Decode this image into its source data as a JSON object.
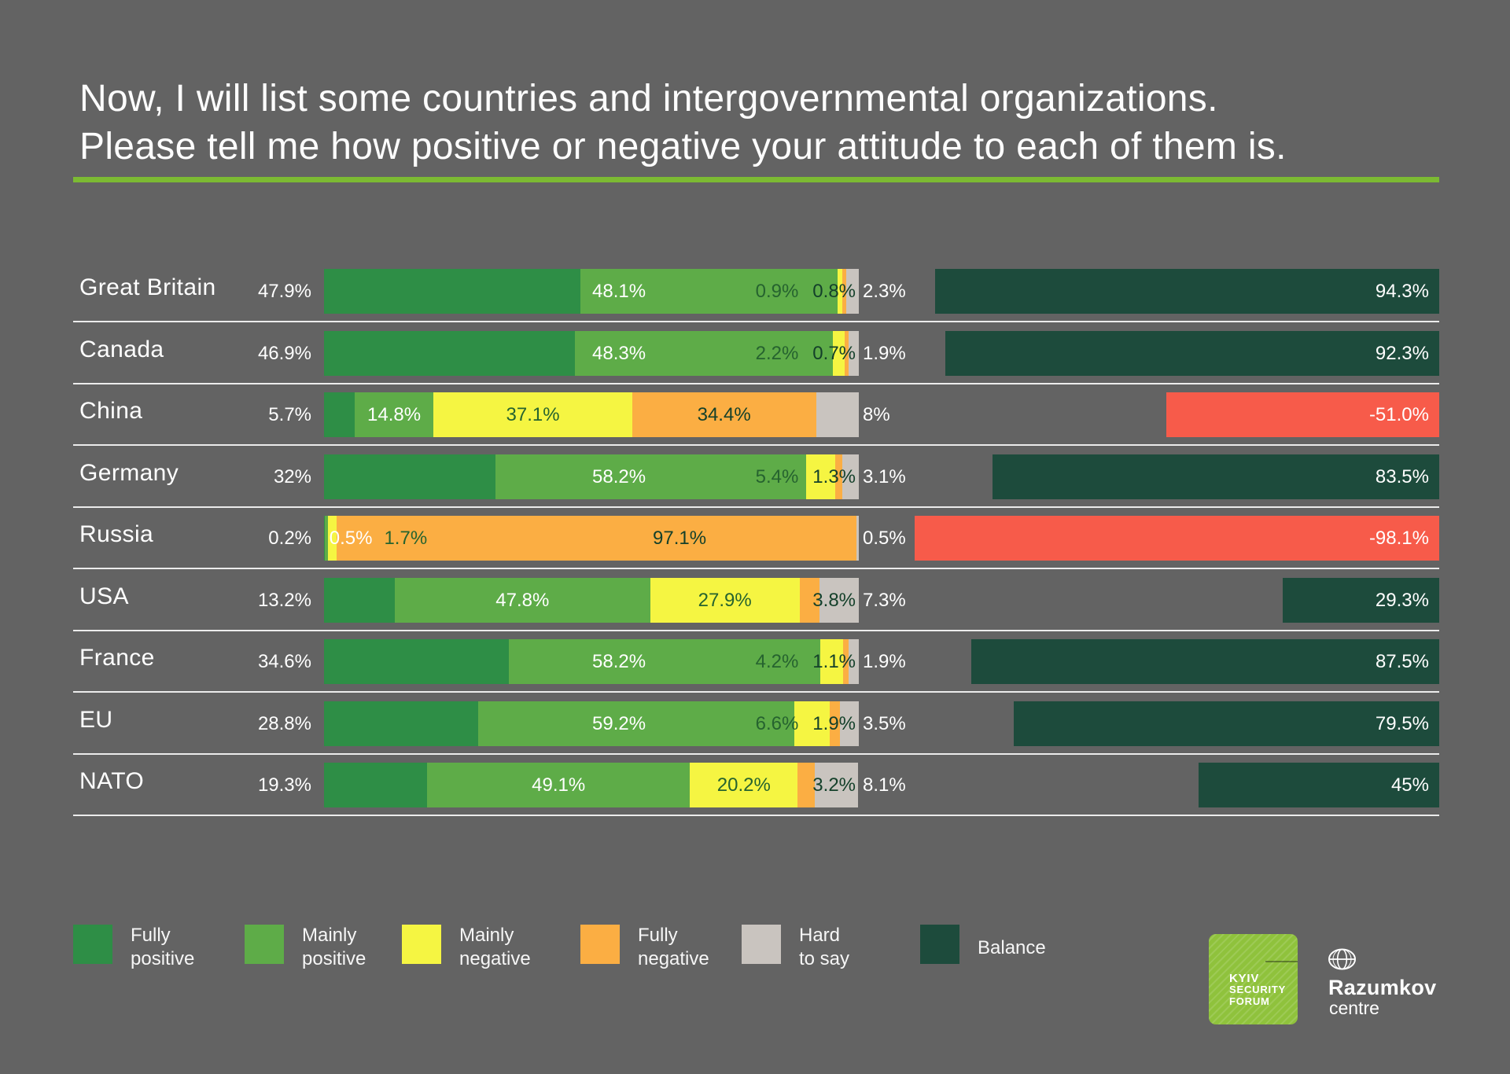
{
  "title": {
    "line1": "Now, I will list some countries and intergovernmental organizations.",
    "line2": "Please tell me how positive or negative your attitude to each of them is."
  },
  "accent": {
    "background": "#636363",
    "underline": "#7cba33",
    "separator": "#ececec"
  },
  "chart_data": {
    "type": "bar",
    "stacked": true,
    "unit": "percent",
    "xlim": [
      0,
      100
    ],
    "categories": [
      "Great Britain",
      "Canada",
      "China",
      "Germany",
      "Russia",
      "USA",
      "France",
      "EU",
      "NATO"
    ],
    "series": [
      {
        "name": "Fully positive",
        "color": "#2e8e46",
        "values": [
          47.9,
          46.9,
          5.7,
          32,
          0.2,
          13.2,
          34.6,
          28.8,
          19.3
        ]
      },
      {
        "name": "Mainly positive",
        "color": "#5eac48",
        "values": [
          48.1,
          48.3,
          14.8,
          58.2,
          0.5,
          47.8,
          58.2,
          59.2,
          49.1
        ]
      },
      {
        "name": "Mainly negative",
        "color": "#f5f542",
        "values": [
          0.9,
          2.2,
          37.1,
          5.4,
          1.7,
          27.9,
          4.2,
          6.6,
          20.2
        ]
      },
      {
        "name": "Fully negative",
        "color": "#fbae43",
        "values": [
          0.8,
          0.7,
          34.4,
          1.3,
          97.1,
          3.8,
          1.1,
          1.9,
          3.2
        ]
      },
      {
        "name": "Hard to say",
        "color": "#c9c4bf",
        "values": [
          2.3,
          1.9,
          8,
          3.1,
          0.5,
          7.3,
          1.9,
          3.5,
          8.1
        ]
      }
    ],
    "balance": {
      "name": "Balance",
      "positive_color": "#1d4b3c",
      "negative_color": "#f75b4a",
      "values": [
        94.3,
        92.3,
        -51.0,
        83.5,
        -98.1,
        29.3,
        87.5,
        79.5,
        45
      ]
    },
    "value_labels": {
      "fully_positive": [
        "47.9%",
        "46.9%",
        "5.7%",
        "32%",
        "0.2%",
        "13.2%",
        "34.6%",
        "28.8%",
        "19.3%"
      ],
      "mainly_positive": [
        "48.1%",
        "48.3%",
        "14.8%",
        "58.2%",
        "0.5%",
        "47.8%",
        "58.2%",
        "59.2%",
        "49.1%"
      ],
      "mainly_negative": [
        "0.9%",
        "2.2%",
        "37.1%",
        "5.4%",
        "1.7%",
        "27.9%",
        "4.2%",
        "6.6%",
        "20.2%"
      ],
      "fully_negative": [
        "0.8%",
        "0.7%",
        "34.4%",
        "1.3%",
        "97.1%",
        "3.8%",
        "1.1%",
        "1.9%",
        "3.2%"
      ],
      "hard_to_say": [
        "2.3%",
        "1.9%",
        "8%",
        "3.1%",
        "0.5%",
        "7.3%",
        "1.9%",
        "3.5%",
        "8.1%"
      ],
      "balance": [
        "94.3%",
        "92.3%",
        "-51.0%",
        "83.5%",
        "-98.1%",
        "29.3%",
        "87.5%",
        "79.5%",
        "45%"
      ]
    },
    "layout_hints": {
      "fully_negative_label_x": {
        "Russia": 830
      }
    }
  },
  "legend": {
    "items": [
      {
        "label": "Fully positive",
        "line1": "Fully",
        "line2": "positive",
        "color": "#2e8e46"
      },
      {
        "label": "Mainly positive",
        "line1": "Mainly",
        "line2": "positive",
        "color": "#5eac48"
      },
      {
        "label": "Mainly negative",
        "line1": "Mainly",
        "line2": "negative",
        "color": "#f5f542"
      },
      {
        "label": "Fully negative",
        "line1": "Fully",
        "line2": "negative",
        "color": "#fbae43"
      },
      {
        "label": "Hard to say",
        "line1": "Hard",
        "line2": "to say",
        "color": "#c9c4bf"
      },
      {
        "label": "Balance",
        "line1": "Balance",
        "line2": "",
        "color": "#1d4b3c"
      }
    ]
  },
  "footer": {
    "ksf": {
      "line1": "KYIV",
      "line2": "SECURITY",
      "line3": "FORUM",
      "color": "#8fc23c"
    },
    "razumkov": {
      "name": "Razumkov",
      "sub": "centre"
    }
  }
}
